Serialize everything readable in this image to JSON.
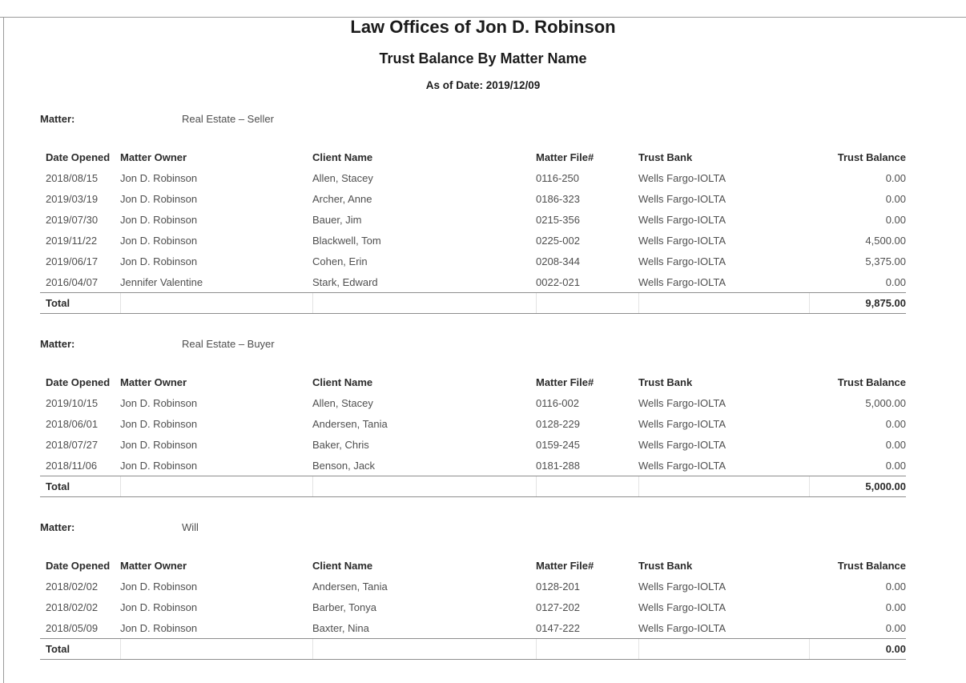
{
  "document": {
    "title": "Law Offices of Jon D. Robinson",
    "subtitle": "Trust Balance By Matter Name",
    "as_of_date": "As of Date: 2019/12/09"
  },
  "report": {
    "matter_label": "Matter:",
    "total_label": "Total",
    "columns": [
      "Date Opened",
      "Matter Owner",
      "Client Name",
      "Matter File#",
      "Trust Bank",
      "Trust Balance"
    ],
    "sections": [
      {
        "matter_name": "Real Estate – Seller",
        "rows": [
          {
            "date_opened": "2018/08/15",
            "matter_owner": "Jon D. Robinson",
            "client_name": "Allen, Stacey",
            "matter_file": "0116-250",
            "trust_bank": "Wells Fargo-IOLTA",
            "trust_balance": "0.00"
          },
          {
            "date_opened": "2019/03/19",
            "matter_owner": "Jon D. Robinson",
            "client_name": "Archer, Anne",
            "matter_file": "0186-323",
            "trust_bank": "Wells Fargo-IOLTA",
            "trust_balance": "0.00"
          },
          {
            "date_opened": "2019/07/30",
            "matter_owner": "Jon D. Robinson",
            "client_name": "Bauer, Jim",
            "matter_file": "0215-356",
            "trust_bank": "Wells Fargo-IOLTA",
            "trust_balance": "0.00"
          },
          {
            "date_opened": "2019/11/22",
            "matter_owner": "Jon D. Robinson",
            "client_name": "Blackwell, Tom",
            "matter_file": "0225-002",
            "trust_bank": "Wells Fargo-IOLTA",
            "trust_balance": "4,500.00"
          },
          {
            "date_opened": "2019/06/17",
            "matter_owner": "Jon D. Robinson",
            "client_name": "Cohen, Erin",
            "matter_file": "0208-344",
            "trust_bank": "Wells Fargo-IOLTA",
            "trust_balance": "5,375.00"
          },
          {
            "date_opened": "2016/04/07",
            "matter_owner": "Jennifer Valentine",
            "client_name": "Stark, Edward",
            "matter_file": "0022-021",
            "trust_bank": "Wells Fargo-IOLTA",
            "trust_balance": "0.00"
          }
        ],
        "total": "9,875.00"
      },
      {
        "matter_name": "Real Estate – Buyer",
        "rows": [
          {
            "date_opened": "2019/10/15",
            "matter_owner": "Jon D. Robinson",
            "client_name": "Allen, Stacey",
            "matter_file": "0116-002",
            "trust_bank": "Wells Fargo-IOLTA",
            "trust_balance": "5,000.00"
          },
          {
            "date_opened": "2018/06/01",
            "matter_owner": "Jon D. Robinson",
            "client_name": "Andersen, Tania",
            "matter_file": "0128-229",
            "trust_bank": "Wells Fargo-IOLTA",
            "trust_balance": "0.00"
          },
          {
            "date_opened": "2018/07/27",
            "matter_owner": "Jon D. Robinson",
            "client_name": "Baker, Chris",
            "matter_file": "0159-245",
            "trust_bank": "Wells Fargo-IOLTA",
            "trust_balance": "0.00"
          },
          {
            "date_opened": "2018/11/06",
            "matter_owner": "Jon D. Robinson",
            "client_name": "Benson, Jack",
            "matter_file": "0181-288",
            "trust_bank": "Wells Fargo-IOLTA",
            "trust_balance": "0.00"
          }
        ],
        "total": "5,000.00"
      },
      {
        "matter_name": "Will",
        "rows": [
          {
            "date_opened": "2018/02/02",
            "matter_owner": "Jon D. Robinson",
            "client_name": "Andersen, Tania",
            "matter_file": "0128-201",
            "trust_bank": "Wells Fargo-IOLTA",
            "trust_balance": "0.00"
          },
          {
            "date_opened": "2018/02/02",
            "matter_owner": "Jon D. Robinson",
            "client_name": "Barber, Tonya",
            "matter_file": "0127-202",
            "trust_bank": "Wells Fargo-IOLTA",
            "trust_balance": "0.00"
          },
          {
            "date_opened": "2018/05/09",
            "matter_owner": "Jon D. Robinson",
            "client_name": "Baxter, Nina",
            "matter_file": "0147-222",
            "trust_bank": "Wells Fargo-IOLTA",
            "trust_balance": "0.00"
          }
        ],
        "total": "0.00"
      }
    ]
  }
}
